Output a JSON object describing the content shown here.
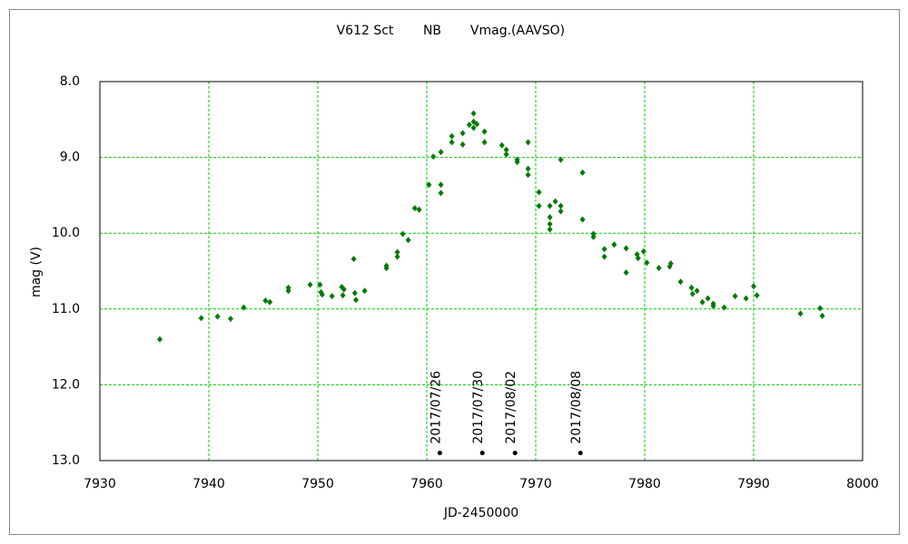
{
  "chart_data": {
    "type": "scatter",
    "title": "V612 Sct",
    "subtitle": "NB",
    "xlabel": "JD-2450000",
    "ylabel": "mag (V)",
    "xlim": [
      7930,
      8000
    ],
    "xticks": [
      7930,
      7940,
      7950,
      7960,
      7970,
      7980,
      7990,
      8000
    ],
    "ylim": [
      8,
      13
    ],
    "y_inverted": true,
    "yticks": [
      {
        "value": 8,
        "label": "8.0"
      },
      {
        "value": 9,
        "label": "9.0"
      },
      {
        "value": 10,
        "label": "10.0"
      },
      {
        "value": 11,
        "label": "11.0"
      },
      {
        "value": 12,
        "label": "12.0"
      },
      {
        "value": 13,
        "label": "13.0"
      }
    ],
    "grid": true,
    "grid_color": "#00cc00",
    "series": [
      {
        "name": "Vmag.(AAVSO)",
        "color": "#007a00",
        "x": [
          7935.5,
          7939.3,
          7940.8,
          7942.0,
          7943.2,
          7945.2,
          7945.6,
          7947.3,
          7947.3,
          7949.3,
          7950.2,
          7950.3,
          7950.4,
          7951.3,
          7952.2,
          7952.3,
          7952.4,
          7953.3,
          7953.4,
          7953.5,
          7954.3,
          7956.3,
          7956.3,
          7957.3,
          7957.3,
          7957.8,
          7958.3,
          7958.9,
          7959.3,
          7960.2,
          7960.6,
          7961.3,
          7961.3,
          7961.3,
          7962.3,
          7962.3,
          7963.3,
          7963.3,
          7963.9,
          7964.3,
          7964.3,
          7964.3,
          7964.6,
          7965.3,
          7965.3,
          7966.9,
          7967.3,
          7967.3,
          7968.3,
          7968.3,
          7969.3,
          7969.3,
          7969.3,
          7970.3,
          7970.3,
          7971.3,
          7971.3,
          7971.3,
          7971.3,
          7971.8,
          7972.3,
          7972.3,
          7972.3,
          7974.3,
          7974.3,
          7975.3,
          7975.3,
          7976.3,
          7976.3,
          7977.2,
          7978.3,
          7978.3,
          7979.3,
          7979.4,
          7979.9,
          7980.2,
          7981.3,
          7982.3,
          7982.4,
          7983.3,
          7984.3,
          7984.4,
          7984.8,
          7985.3,
          7985.8,
          7986.3,
          7986.3,
          7987.3,
          7988.3,
          7989.3,
          7990.0,
          7990.3,
          7994.3,
          7996.1,
          7996.3
        ],
        "values": [
          11.4,
          11.12,
          11.1,
          11.13,
          10.98,
          10.89,
          10.91,
          10.72,
          10.76,
          10.68,
          10.68,
          10.78,
          10.81,
          10.83,
          10.71,
          10.82,
          10.74,
          10.34,
          10.79,
          10.88,
          10.76,
          10.43,
          10.46,
          10.31,
          10.25,
          10.01,
          10.09,
          9.67,
          9.69,
          9.36,
          8.99,
          9.36,
          9.47,
          8.93,
          8.72,
          8.8,
          8.68,
          8.83,
          8.57,
          8.42,
          8.53,
          8.61,
          8.56,
          8.66,
          8.8,
          8.84,
          8.9,
          8.96,
          9.03,
          9.06,
          8.8,
          9.15,
          9.23,
          9.46,
          9.64,
          9.64,
          9.79,
          9.88,
          9.95,
          9.58,
          9.03,
          9.71,
          9.64,
          9.2,
          9.82,
          10.01,
          10.05,
          10.31,
          10.21,
          10.15,
          10.2,
          10.52,
          10.28,
          10.33,
          10.24,
          10.39,
          10.46,
          10.44,
          10.4,
          10.64,
          10.72,
          10.8,
          10.76,
          10.91,
          10.86,
          10.93,
          10.96,
          10.98,
          10.83,
          10.86,
          10.7,
          10.82,
          11.06,
          10.99,
          11.09
        ]
      }
    ],
    "annotations": [
      {
        "x": 7961.2,
        "y": 12.9,
        "label": "2017/07/26"
      },
      {
        "x": 7965.1,
        "y": 12.9,
        "label": "2017/07/30"
      },
      {
        "x": 7968.1,
        "y": 12.9,
        "label": "2017/08/02"
      },
      {
        "x": 7974.1,
        "y": 12.9,
        "label": "2017/08/08"
      }
    ]
  }
}
